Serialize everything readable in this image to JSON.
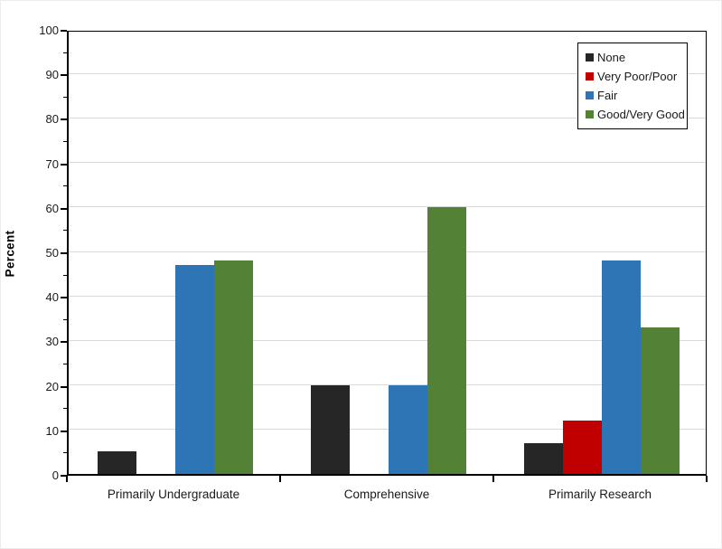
{
  "chart_data": {
    "type": "bar",
    "title": "",
    "categories": [
      "Primarily Undergraduate",
      "Comprehensive",
      "Primarily Research"
    ],
    "series": [
      {
        "name": "None",
        "color": "#262626",
        "values": [
          5,
          20,
          7
        ]
      },
      {
        "name": "Very Poor/Poor",
        "color": "#c00000",
        "values": [
          0,
          0,
          12
        ]
      },
      {
        "name": "Fair",
        "color": "#2e75b5",
        "values": [
          47,
          20,
          48
        ]
      },
      {
        "name": "Good/Very Good",
        "color": "#538135",
        "values": [
          48,
          60,
          33
        ]
      }
    ],
    "xlabel": "",
    "ylabel": "Percent",
    "ylim": [
      0,
      100
    ],
    "yticks": [
      0,
      10,
      20,
      30,
      40,
      50,
      60,
      70,
      80,
      90,
      100
    ],
    "minor_tick_step": 5,
    "grid": "horizontal-major",
    "gridline_color": "#d9d9d9",
    "legend_position": "top-right",
    "legend_border_color": "#000000",
    "axis_color": "#000000"
  }
}
